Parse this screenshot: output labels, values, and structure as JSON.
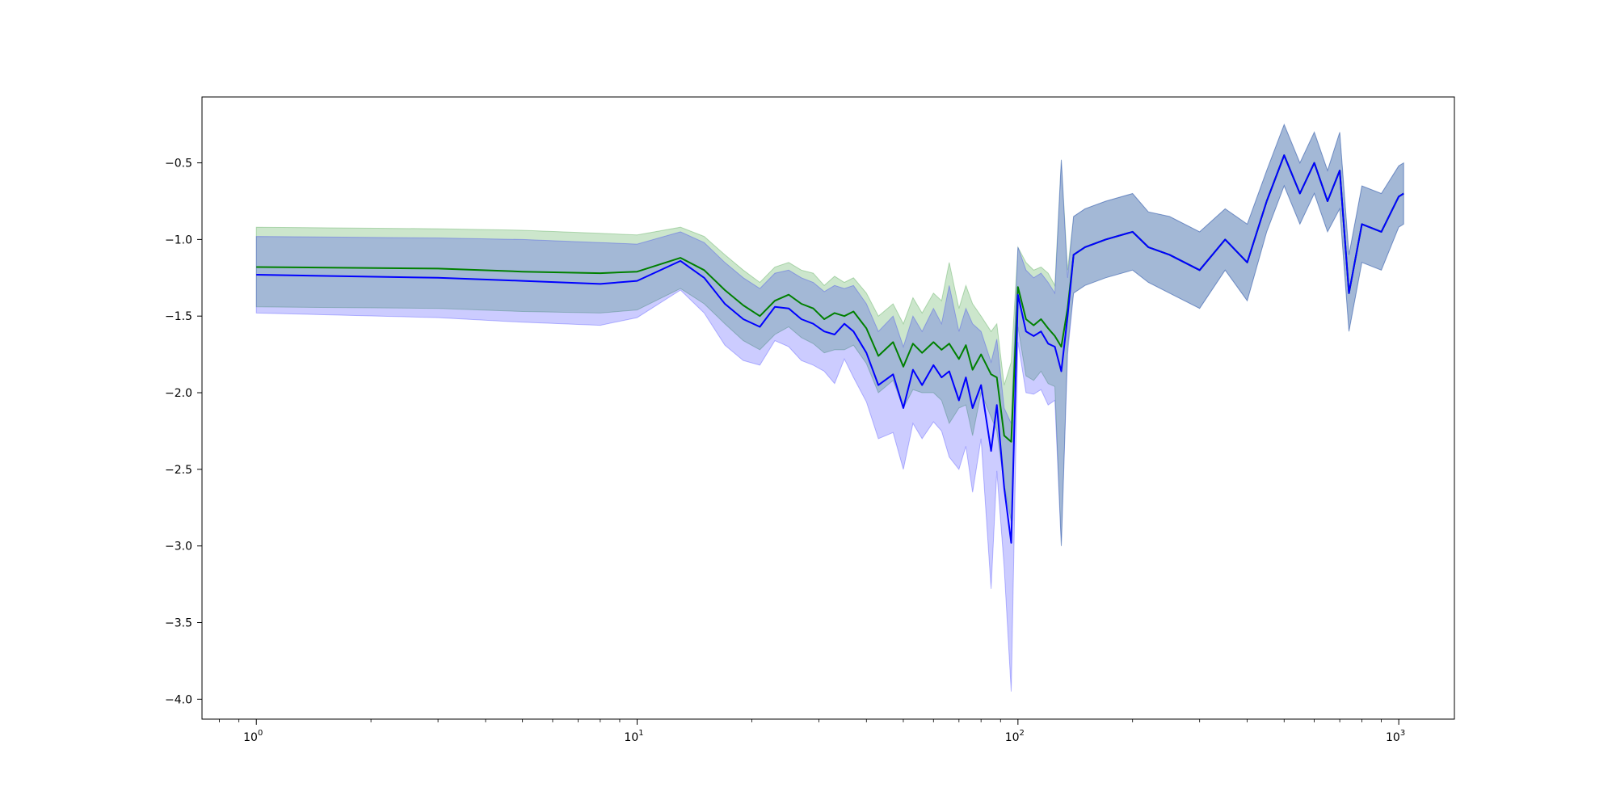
{
  "chart_data": {
    "type": "line",
    "title": "",
    "xlabel": "",
    "ylabel": "",
    "x_scale": "log",
    "xlim": [
      0.72,
      1400
    ],
    "ylim": [
      -4.13,
      -0.07
    ],
    "grid": false,
    "y_ticks": [
      {
        "value": -0.5,
        "label": "−0.5"
      },
      {
        "value": -1.0,
        "label": "−1.0"
      },
      {
        "value": -1.5,
        "label": "−1.5"
      },
      {
        "value": -2.0,
        "label": "−2.0"
      },
      {
        "value": -2.5,
        "label": "−2.5"
      },
      {
        "value": -3.0,
        "label": "−3.0"
      },
      {
        "value": -3.5,
        "label": "−3.5"
      },
      {
        "value": -4.0,
        "label": "−4.0"
      }
    ],
    "x_ticks": [
      {
        "value": 1,
        "base": "10",
        "exp": "0"
      },
      {
        "value": 10,
        "base": "10",
        "exp": "1"
      },
      {
        "value": 100,
        "base": "10",
        "exp": "2"
      },
      {
        "value": 1000,
        "base": "10",
        "exp": "3"
      }
    ],
    "series": [
      {
        "color": "#008000",
        "band_color": "#008000",
        "band_opacity": 0.2,
        "x": [
          1,
          3,
          5,
          8,
          10,
          13,
          15,
          17,
          19,
          21,
          23,
          25,
          27,
          29,
          31,
          33,
          35,
          37,
          40,
          43,
          47,
          50,
          53,
          56,
          60,
          63,
          66,
          70,
          73,
          76,
          80,
          85,
          88,
          92,
          96,
          100,
          105,
          110,
          115,
          120,
          125,
          130,
          135,
          140,
          150,
          170,
          200,
          220,
          250,
          300,
          350,
          400,
          450,
          500,
          550,
          600,
          650,
          700,
          740,
          800,
          900,
          1000,
          1030
        ],
        "y": [
          -1.18,
          -1.19,
          -1.21,
          -1.22,
          -1.21,
          -1.12,
          -1.2,
          -1.33,
          -1.43,
          -1.5,
          -1.4,
          -1.36,
          -1.42,
          -1.45,
          -1.52,
          -1.48,
          -1.5,
          -1.47,
          -1.58,
          -1.76,
          -1.67,
          -1.83,
          -1.68,
          -1.74,
          -1.67,
          -1.72,
          -1.68,
          -1.78,
          -1.69,
          -1.85,
          -1.75,
          -1.88,
          -1.9,
          -2.28,
          -2.32,
          -1.31,
          -1.52,
          -1.56,
          -1.52,
          -1.58,
          -1.63,
          -1.7,
          -1.45,
          -1.1,
          -1.05,
          -1.0,
          -0.95,
          -1.05,
          -1.1,
          -1.2,
          -1.0,
          -1.15,
          -0.75,
          -0.45,
          -0.7,
          -0.5,
          -0.75,
          -0.55,
          -1.35,
          -0.9,
          -0.95,
          -0.72,
          -0.7
        ],
        "upper": [
          -0.92,
          -0.93,
          -0.94,
          -0.96,
          -0.97,
          -0.92,
          -0.98,
          -1.1,
          -1.2,
          -1.28,
          -1.18,
          -1.15,
          -1.2,
          -1.22,
          -1.3,
          -1.24,
          -1.28,
          -1.25,
          -1.35,
          -1.5,
          -1.42,
          -1.55,
          -1.38,
          -1.48,
          -1.35,
          -1.4,
          -1.15,
          -1.45,
          -1.3,
          -1.42,
          -1.5,
          -1.6,
          -1.55,
          -1.95,
          -1.8,
          -1.05,
          -1.15,
          -1.2,
          -1.18,
          -1.22,
          -1.3,
          -0.48,
          -1.2,
          -0.85,
          -0.8,
          -0.75,
          -0.7,
          -0.82,
          -0.85,
          -0.95,
          -0.8,
          -0.9,
          -0.55,
          -0.25,
          -0.5,
          -0.3,
          -0.55,
          -0.3,
          -1.1,
          -0.65,
          -0.7,
          -0.52,
          -0.5
        ],
        "lower": [
          -1.44,
          -1.45,
          -1.47,
          -1.48,
          -1.46,
          -1.32,
          -1.42,
          -1.55,
          -1.66,
          -1.72,
          -1.62,
          -1.57,
          -1.64,
          -1.68,
          -1.74,
          -1.72,
          -1.72,
          -1.69,
          -1.81,
          -2.0,
          -1.92,
          -2.1,
          -1.98,
          -2.0,
          -2.0,
          -2.05,
          -2.2,
          -2.1,
          -2.08,
          -2.28,
          -2.0,
          -2.16,
          -2.25,
          -2.6,
          -2.84,
          -1.57,
          -1.89,
          -1.92,
          -1.86,
          -1.94,
          -1.96,
          -3.0,
          -1.7,
          -1.35,
          -1.3,
          -1.25,
          -1.2,
          -1.28,
          -1.35,
          -1.45,
          -1.2,
          -1.4,
          -0.95,
          -0.65,
          -0.9,
          -0.7,
          -0.95,
          -0.8,
          -1.6,
          -1.15,
          -1.2,
          -0.92,
          -0.9
        ]
      },
      {
        "color": "#0000ff",
        "band_color": "#0000ff",
        "band_opacity": 0.2,
        "x": [
          1,
          3,
          5,
          8,
          10,
          13,
          15,
          17,
          19,
          21,
          23,
          25,
          27,
          29,
          31,
          33,
          35,
          37,
          40,
          43,
          47,
          50,
          53,
          56,
          60,
          63,
          66,
          70,
          73,
          76,
          80,
          85,
          88,
          92,
          96,
          100,
          105,
          110,
          115,
          120,
          125,
          130,
          135,
          140,
          150,
          170,
          200,
          220,
          250,
          300,
          350,
          400,
          450,
          500,
          550,
          600,
          650,
          700,
          740,
          800,
          900,
          1000,
          1030
        ],
        "y": [
          -1.23,
          -1.25,
          -1.27,
          -1.29,
          -1.27,
          -1.14,
          -1.25,
          -1.42,
          -1.52,
          -1.57,
          -1.44,
          -1.45,
          -1.52,
          -1.55,
          -1.6,
          -1.62,
          -1.55,
          -1.6,
          -1.74,
          -1.95,
          -1.88,
          -2.1,
          -1.85,
          -1.95,
          -1.82,
          -1.9,
          -1.86,
          -2.05,
          -1.9,
          -2.1,
          -1.95,
          -2.38,
          -2.08,
          -2.62,
          -2.98,
          -1.36,
          -1.6,
          -1.63,
          -1.6,
          -1.68,
          -1.7,
          -1.86,
          -1.5,
          -1.1,
          -1.05,
          -1.0,
          -0.95,
          -1.05,
          -1.1,
          -1.2,
          -1.0,
          -1.15,
          -0.75,
          -0.45,
          -0.7,
          -0.5,
          -0.75,
          -0.55,
          -1.35,
          -0.9,
          -0.95,
          -0.72,
          -0.7
        ],
        "upper": [
          -0.98,
          -0.99,
          -1.0,
          -1.02,
          -1.03,
          -0.95,
          -1.02,
          -1.15,
          -1.25,
          -1.32,
          -1.22,
          -1.2,
          -1.25,
          -1.28,
          -1.34,
          -1.3,
          -1.32,
          -1.3,
          -1.42,
          -1.6,
          -1.5,
          -1.7,
          -1.5,
          -1.6,
          -1.45,
          -1.55,
          -1.3,
          -1.6,
          -1.45,
          -1.55,
          -1.6,
          -1.8,
          -1.65,
          -2.1,
          -2.2,
          -1.05,
          -1.2,
          -1.25,
          -1.22,
          -1.28,
          -1.35,
          -0.48,
          -1.25,
          -0.85,
          -0.8,
          -0.75,
          -0.7,
          -0.82,
          -0.85,
          -0.95,
          -0.8,
          -0.9,
          -0.55,
          -0.25,
          -0.5,
          -0.3,
          -0.55,
          -0.3,
          -1.1,
          -0.65,
          -0.7,
          -0.52,
          -0.5
        ],
        "lower": [
          -1.48,
          -1.51,
          -1.54,
          -1.56,
          -1.51,
          -1.33,
          -1.48,
          -1.69,
          -1.79,
          -1.82,
          -1.66,
          -1.7,
          -1.79,
          -1.82,
          -1.86,
          -1.94,
          -1.78,
          -1.9,
          -2.06,
          -2.3,
          -2.26,
          -2.5,
          -2.2,
          -2.3,
          -2.19,
          -2.25,
          -2.42,
          -2.5,
          -2.35,
          -2.65,
          -2.3,
          -3.28,
          -2.51,
          -3.14,
          -3.95,
          -1.67,
          -2.0,
          -2.01,
          -1.98,
          -2.08,
          -2.05,
          -3.0,
          -1.75,
          -1.35,
          -1.3,
          -1.25,
          -1.2,
          -1.28,
          -1.35,
          -1.45,
          -1.2,
          -1.4,
          -0.95,
          -0.65,
          -0.9,
          -0.7,
          -0.95,
          -0.8,
          -1.6,
          -1.15,
          -1.2,
          -0.92,
          -0.9
        ]
      }
    ]
  }
}
